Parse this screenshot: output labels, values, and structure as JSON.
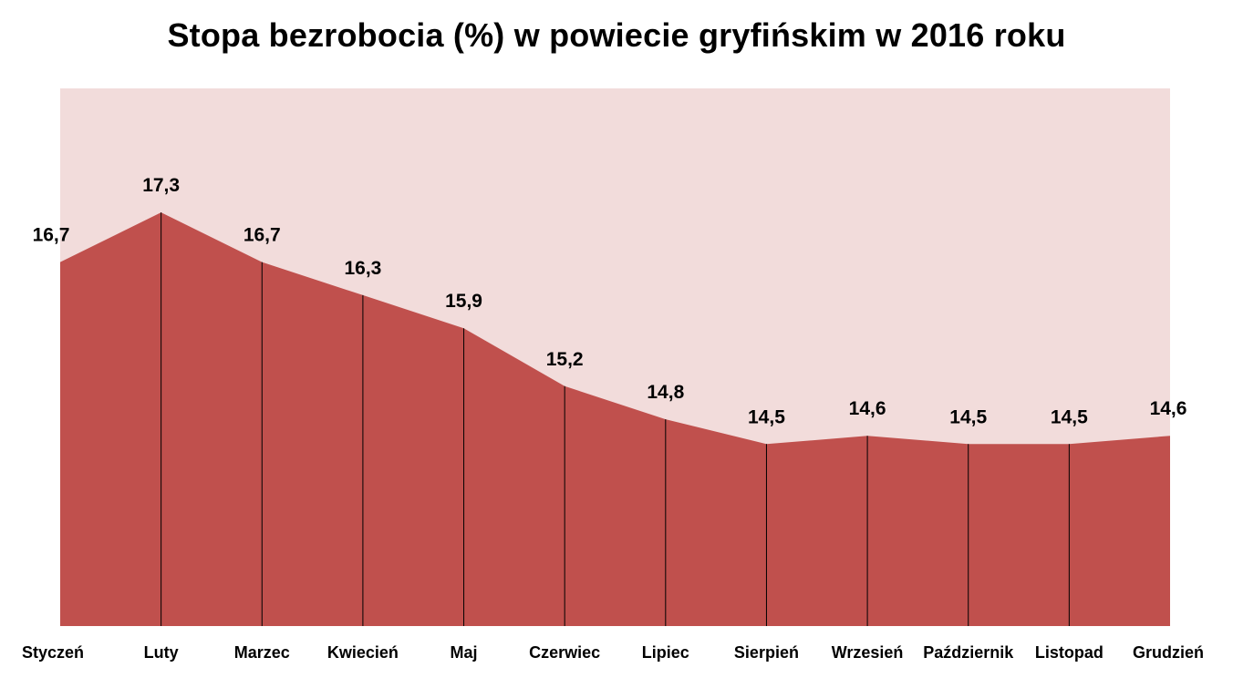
{
  "chart_data": {
    "type": "area",
    "title": "Stopa bezrobocia (%) w powiecie gryfińskim w 2016 roku",
    "xlabel": "",
    "ylabel": "",
    "categories": [
      "Styczeń",
      "Luty",
      "Marzec",
      "Kwiecień",
      "Maj",
      "Czerwiec",
      "Lipiec",
      "Sierpień",
      "Wrzesień",
      "Październik",
      "Listopad",
      "Grudzień"
    ],
    "values": [
      16.7,
      17.3,
      16.7,
      16.3,
      15.9,
      15.2,
      14.8,
      14.5,
      14.6,
      14.5,
      14.5,
      14.6
    ],
    "data_labels": [
      "16,7",
      "17,3",
      "16,7",
      "16,3",
      "15,9",
      "15,2",
      "14,8",
      "14,5",
      "14,6",
      "14,5",
      "14,5",
      "14,6"
    ],
    "ylim": [
      12.3,
      18.8
    ],
    "grid": false,
    "legend": "none",
    "colors": {
      "plot_background": "#F2DCDB",
      "area_fill": "#C0504D",
      "drop_lines": "#000000"
    }
  }
}
